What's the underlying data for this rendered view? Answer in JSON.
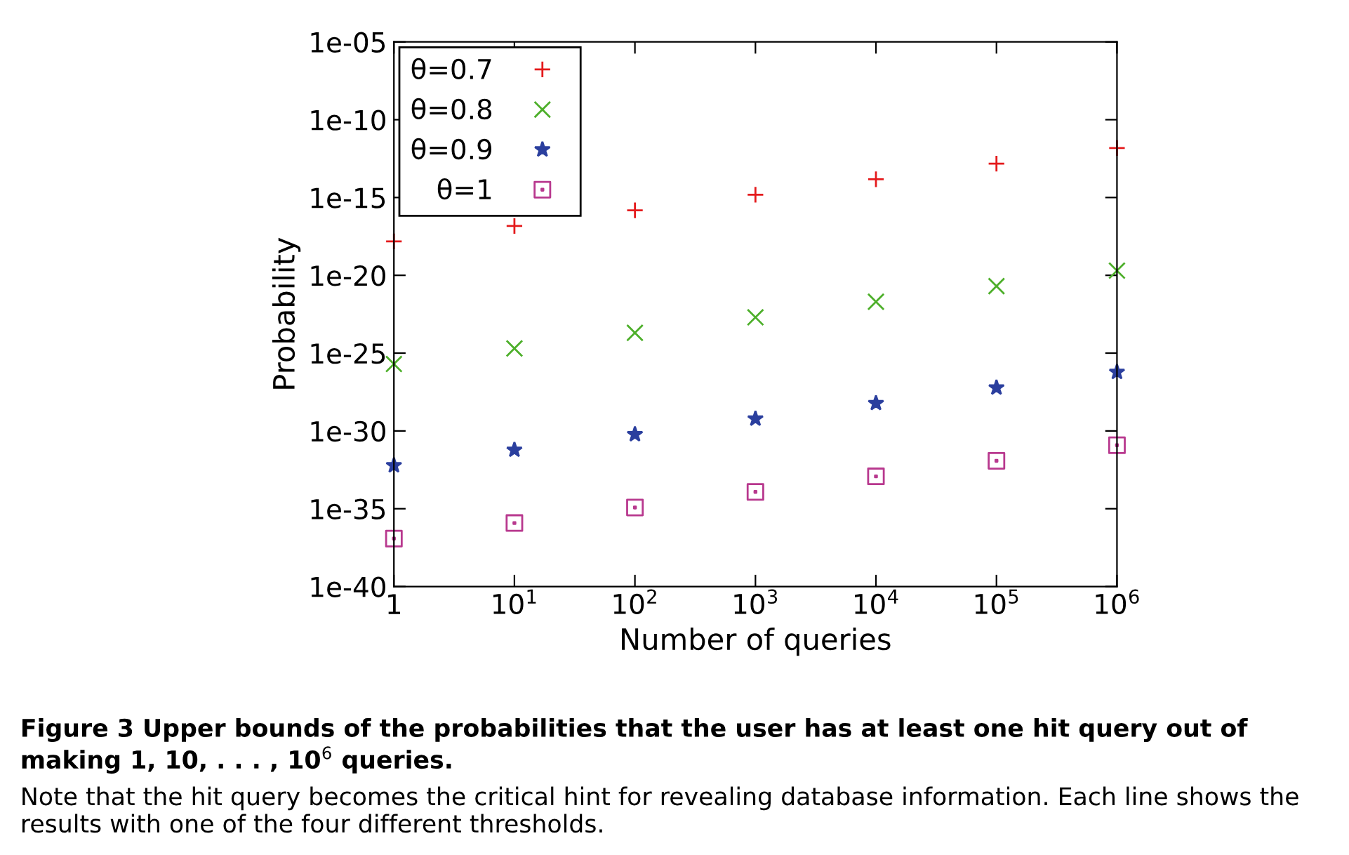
{
  "chart_data": {
    "type": "scatter",
    "xlabel": "Number of queries",
    "ylabel": "Probability",
    "log": "xy",
    "x": [
      1,
      10,
      100,
      1000,
      10000,
      100000,
      1000000
    ],
    "series": [
      {
        "name": "θ=0.7",
        "color": "#e41a1c",
        "marker": "cross",
        "values": [
          1.5e-18,
          1.5e-17,
          1.5e-16,
          1.5e-15,
          1.5e-14,
          1.5e-13,
          1.5e-12
        ]
      },
      {
        "name": "θ=0.8",
        "color": "#4daf2a",
        "marker": "x",
        "values": [
          2e-26,
          2e-25,
          2e-24,
          2e-23,
          2e-22,
          2e-21,
          2e-20
        ]
      },
      {
        "name": "θ=0.9",
        "color": "#2b3f9e",
        "marker": "star",
        "values": [
          6e-33,
          6e-32,
          6e-31,
          6e-30,
          6e-29,
          6e-28,
          6e-27
        ]
      },
      {
        "name": "θ=1",
        "color": "#b8388e",
        "marker": "square",
        "values": [
          1.2e-37,
          1.2e-36,
          1.2e-35,
          1.2e-34,
          1.2e-33,
          1.2e-32,
          1.2e-31
        ]
      }
    ],
    "xlim": [
      1,
      1000000
    ],
    "ylim": [
      1e-40,
      1e-05
    ],
    "xticks": [
      {
        "value": 1,
        "label": "1"
      },
      {
        "value": 10,
        "label": "10$^{1}$"
      },
      {
        "value": 100,
        "label": "10$^{2}$"
      },
      {
        "value": 1000,
        "label": "10$^{3}$"
      },
      {
        "value": 10000,
        "label": "10$^{4}$"
      },
      {
        "value": 100000,
        "label": "10$^{5}$"
      },
      {
        "value": 1000000,
        "label": "10$^{6}$"
      }
    ],
    "yticks": [
      {
        "value": 1e-40,
        "label": "1e-40"
      },
      {
        "value": 1e-35,
        "label": "1e-35"
      },
      {
        "value": 1e-30,
        "label": "1e-30"
      },
      {
        "value": 1e-25,
        "label": "1e-25"
      },
      {
        "value": 1e-20,
        "label": "1e-20"
      },
      {
        "value": 1e-15,
        "label": "1e-15"
      },
      {
        "value": 1e-10,
        "label": "1e-10"
      },
      {
        "value": 1e-05,
        "label": "1e-05"
      }
    ],
    "grid": false,
    "legend": "top left",
    "annotations": [
      "Figure 3 Upper bounds of the probabilities that the user has at least one hit query out of making 1, 10, . . . , 10$^{6}$ queries.",
      "Note that the hit query becomes the critical hint for revealing database information. Each line shows the results with one of the four different thresholds."
    ]
  }
}
